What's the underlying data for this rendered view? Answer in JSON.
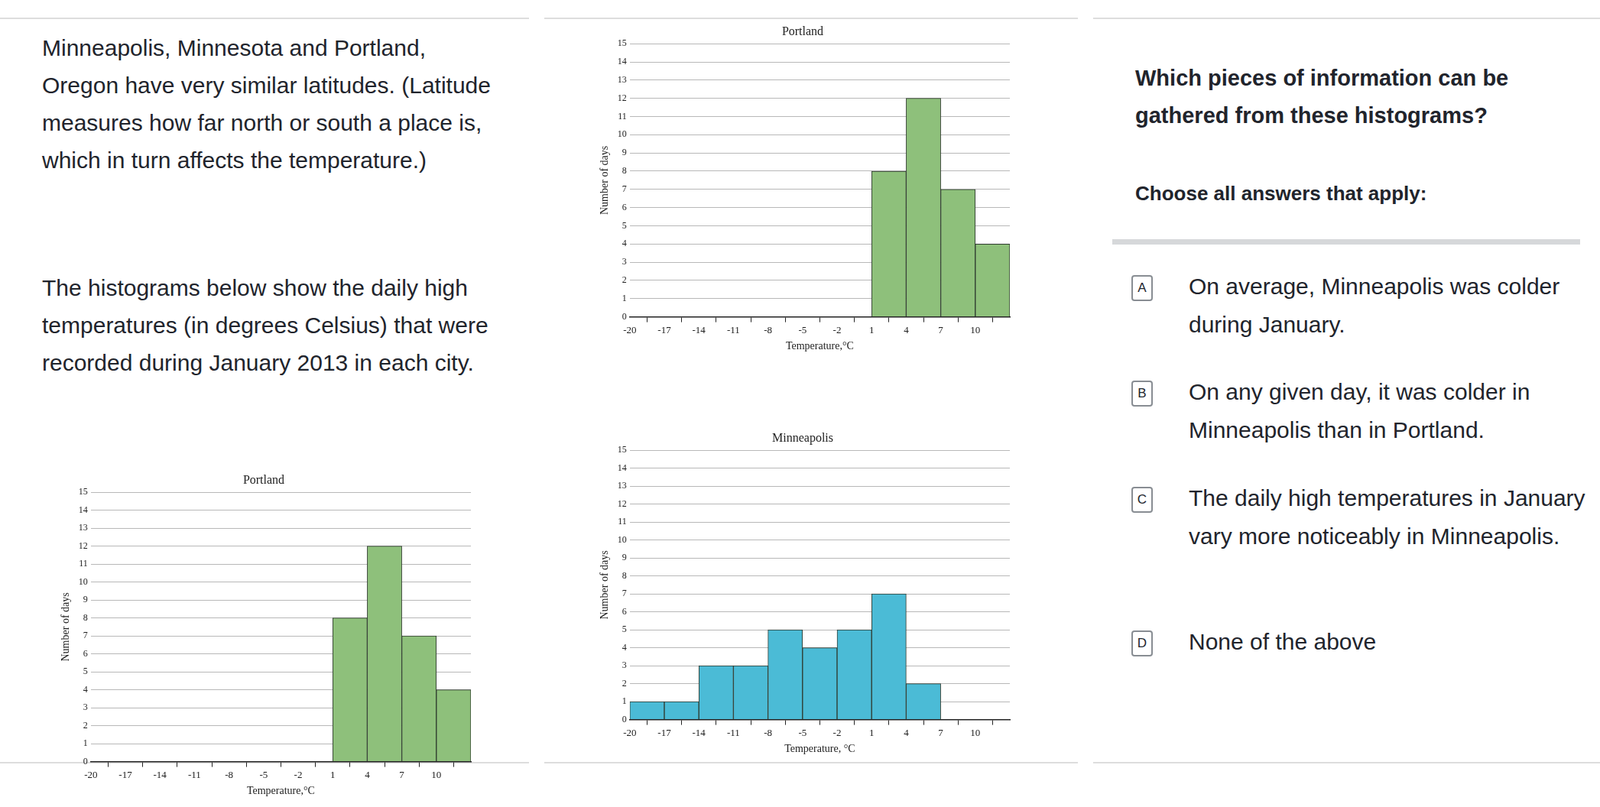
{
  "intro": [
    "Minneapolis, Minnesota and Portland, Oregon have very similar latitudes. (Latitude measures how far north or south a place is, which in turn affects the temperature.)",
    "The histograms below show the daily high temperatures (in degrees Celsius) that were recorded during January 2013 in each city."
  ],
  "question": "Which pieces of information can be gathered from these histograms?",
  "instruction": "Choose all answers that apply:",
  "options": [
    {
      "letter": "A",
      "text": "On average, Minneapolis was colder during January."
    },
    {
      "letter": "B",
      "text": "On any given day, it was colder in Minneapolis than in Portland."
    },
    {
      "letter": "C",
      "text": "The daily high temperatures in January vary more noticeably in Minneapolis."
    },
    {
      "letter": "D",
      "text": "None of the above"
    }
  ],
  "chart_data": [
    {
      "type": "histogram",
      "title": "Portland",
      "bins": [
        -20,
        -17,
        -14,
        -11,
        -8,
        -5,
        -2,
        1,
        4,
        7,
        10,
        13
      ],
      "values": [
        0,
        0,
        0,
        0,
        0,
        0,
        0,
        8,
        12,
        7,
        4
      ],
      "color": "#8ec07b",
      "x_label": "Temperature,°C",
      "y_label": "Number of days",
      "xlim": [
        -20,
        13
      ],
      "xticks": [
        -20,
        -17,
        -14,
        -11,
        -8,
        -5,
        -2,
        1,
        4,
        7,
        10
      ],
      "ylim": [
        0,
        15
      ],
      "yticks": [
        0,
        1,
        2,
        3,
        4,
        5,
        6,
        7,
        8,
        9,
        10,
        11,
        12,
        13,
        14,
        15
      ],
      "grid": true
    },
    {
      "type": "histogram",
      "title": "Portland",
      "bins": [
        -20,
        -17,
        -14,
        -11,
        -8,
        -5,
        -2,
        1,
        4,
        7,
        10,
        13
      ],
      "values": [
        0,
        0,
        0,
        0,
        0,
        0,
        0,
        8,
        12,
        7,
        4
      ],
      "color": "#8ec07b",
      "x_label": "Temperature,°C",
      "y_label": "Number of days",
      "xlim": [
        -20,
        13
      ],
      "xticks": [
        -20,
        -17,
        -14,
        -11,
        -8,
        -5,
        -2,
        1,
        4,
        7,
        10
      ],
      "ylim": [
        0,
        15
      ],
      "yticks": [
        0,
        1,
        2,
        3,
        4,
        5,
        6,
        7,
        8,
        9,
        10,
        11,
        12,
        13,
        14,
        15
      ],
      "grid": true
    },
    {
      "type": "histogram",
      "title": "Minneapolis",
      "bins": [
        -20,
        -17,
        -14,
        -11,
        -8,
        -5,
        -2,
        1,
        4,
        7,
        10,
        13
      ],
      "values": [
        1,
        1,
        3,
        3,
        5,
        4,
        5,
        7,
        2,
        0,
        0
      ],
      "color": "#4bbbd6",
      "x_label": "Temperature, °C",
      "y_label": "Number of days",
      "xlim": [
        -20,
        13
      ],
      "xticks": [
        -20,
        -17,
        -14,
        -11,
        -8,
        -5,
        -2,
        1,
        4,
        7,
        10
      ],
      "ylim": [
        0,
        15
      ],
      "yticks": [
        0,
        1,
        2,
        3,
        4,
        5,
        6,
        7,
        8,
        9,
        10,
        11,
        12,
        13,
        14,
        15
      ],
      "grid": true
    }
  ]
}
